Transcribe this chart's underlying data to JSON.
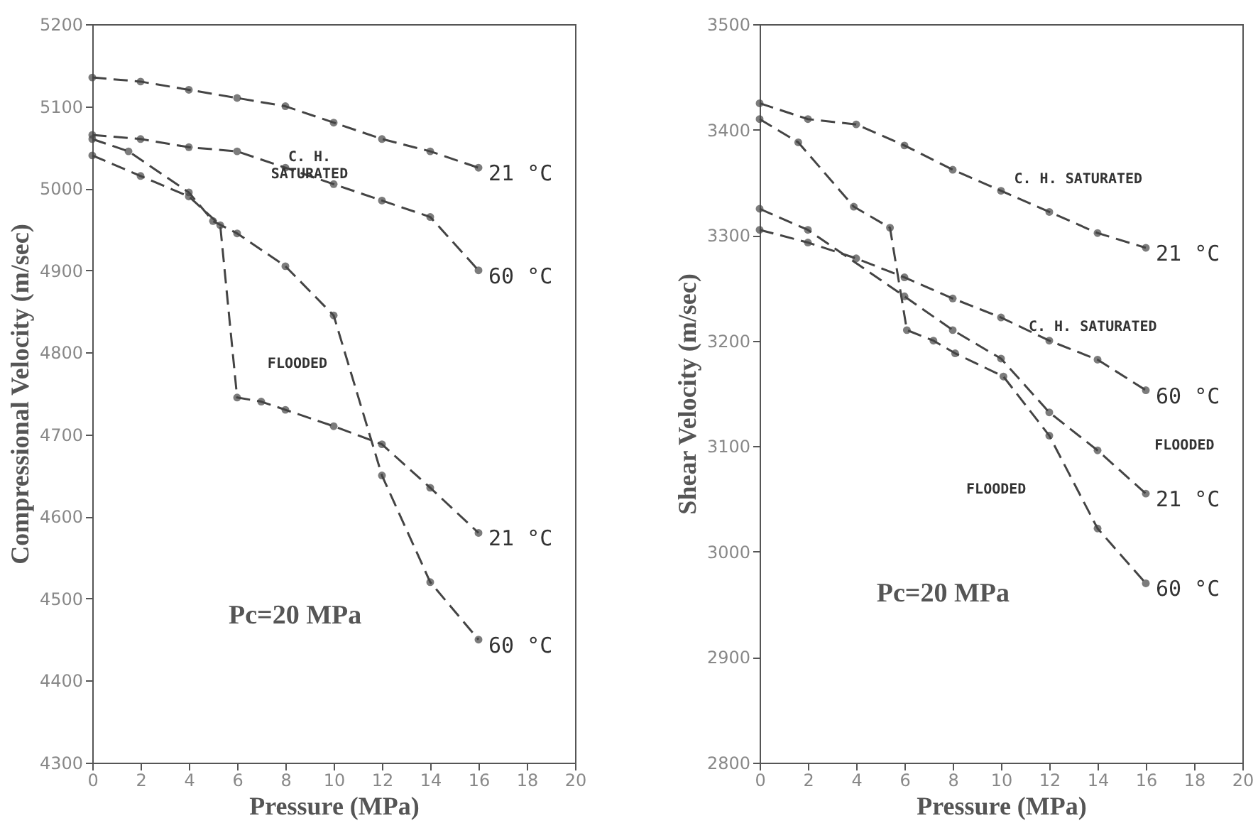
{
  "chart_data": [
    {
      "type": "line",
      "xlabel": "Pressure (MPa)",
      "ylabel": "Compressional Velocity (m/sec)",
      "xlim": [
        0,
        20
      ],
      "xticks": [
        0,
        2,
        4,
        6,
        8,
        10,
        12,
        14,
        16,
        18,
        20
      ],
      "ylim": [
        4300,
        5200
      ],
      "yticks": [
        4300,
        4400,
        4500,
        4600,
        4700,
        4800,
        4900,
        5000,
        5100,
        5200
      ],
      "grid": false,
      "legend": false,
      "marker": "circle",
      "line_style": "dashed",
      "annotations": [
        "C. H.\nSATURATED",
        "FLOODED",
        "Pc=20 MPa"
      ],
      "series": [
        {
          "name": "21 °C",
          "color": "#444444",
          "x": [
            0,
            2,
            4,
            6,
            8,
            10,
            12,
            14,
            16
          ],
          "values": [
            5135,
            5130,
            5120,
            5110,
            5100,
            5080,
            5060,
            5045,
            5025
          ]
        },
        {
          "name": "60 °C",
          "color": "#444444",
          "x": [
            0,
            2,
            4,
            6,
            8,
            10,
            12,
            14,
            16
          ],
          "values": [
            5065,
            5060,
            5050,
            5045,
            5025,
            5005,
            4985,
            4965,
            4900
          ]
        },
        {
          "name": "21 °C",
          "color": "#444444",
          "x": [
            0,
            2,
            4,
            5.3,
            6,
            7,
            8,
            10,
            12,
            14,
            16
          ],
          "values": [
            5040,
            5015,
            4990,
            4955,
            4745,
            4740,
            4730,
            4710,
            4688,
            4635,
            4580
          ]
        },
        {
          "name": "60 °C",
          "color": "#444444",
          "x": [
            0,
            1.5,
            4,
            5,
            6,
            8,
            10,
            12,
            14,
            16
          ],
          "values": [
            5060,
            5045,
            4995,
            4960,
            4945,
            4905,
            4845,
            4650,
            4520,
            4450
          ]
        }
      ]
    },
    {
      "type": "line",
      "xlabel": "Pressure (MPa)",
      "ylabel": "Shear Velocity (m/sec)",
      "xlim": [
        0,
        20
      ],
      "xticks": [
        0,
        2,
        4,
        6,
        8,
        10,
        12,
        14,
        16,
        18,
        20
      ],
      "ylim": [
        2800,
        3500
      ],
      "yticks": [
        2800,
        2900,
        3000,
        3100,
        3200,
        3300,
        3400,
        3500
      ],
      "grid": false,
      "legend": false,
      "marker": "circle",
      "line_style": "dashed",
      "annotations": [
        "C. H. SATURATED",
        "C. H. SATURATED",
        "FLOODED",
        "FLOODED",
        "Pc=20 MPa"
      ],
      "series": [
        {
          "name": "21 °C",
          "color": "#444444",
          "x": [
            0,
            2,
            4,
            6,
            8,
            10,
            12,
            14,
            16
          ],
          "values": [
            3425,
            3410,
            3405,
            3385,
            3362,
            3342,
            3322,
            3302,
            3288
          ]
        },
        {
          "name": "60 °C",
          "color": "#444444",
          "x": [
            0,
            2,
            4,
            6,
            8,
            10,
            12,
            14,
            16
          ],
          "values": [
            3305,
            3293,
            3278,
            3260,
            3240,
            3222,
            3200,
            3182,
            3153
          ]
        },
        {
          "name": "21 °C",
          "color": "#444444",
          "x": [
            0,
            2,
            6,
            8,
            10,
            12,
            14,
            16
          ],
          "values": [
            3325,
            3305,
            3242,
            3210,
            3183,
            3132,
            3096,
            3055
          ]
        },
        {
          "name": "60 °C",
          "color": "#444444",
          "x": [
            0,
            1.6,
            3.9,
            5.4,
            6.1,
            7.2,
            8.1,
            10.1,
            12,
            14,
            16
          ],
          "values": [
            3410,
            3388,
            3327,
            3307,
            3210,
            3200,
            3188,
            3166,
            3110,
            3022,
            2970
          ]
        }
      ]
    }
  ]
}
